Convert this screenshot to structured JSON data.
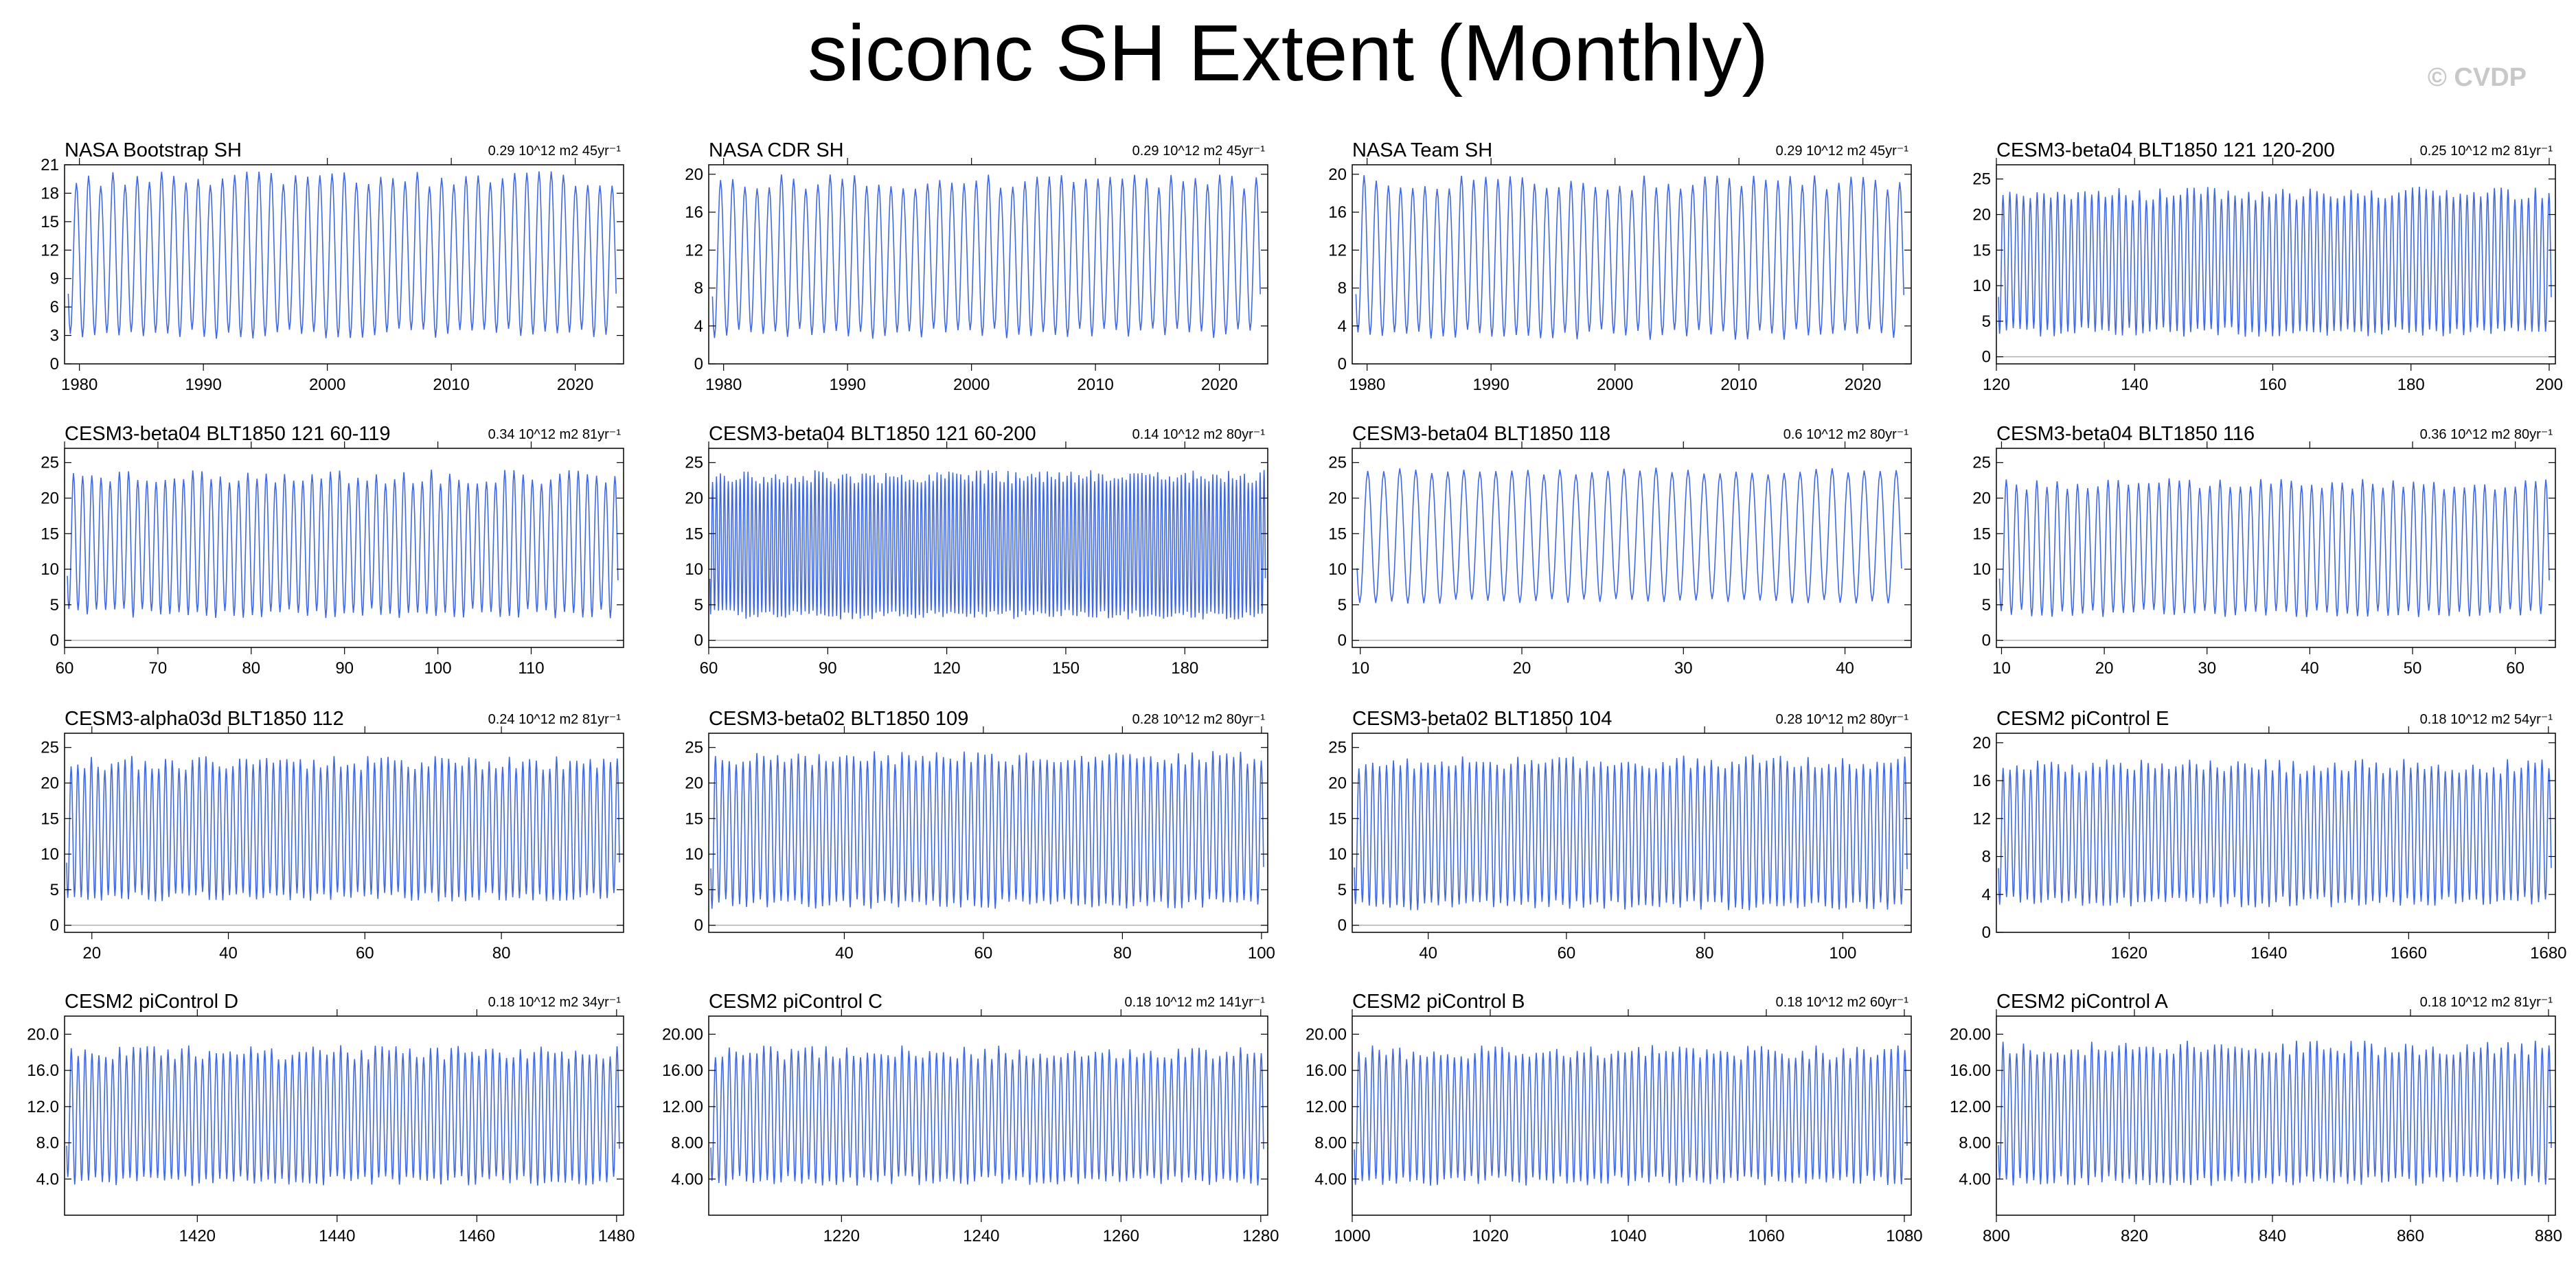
{
  "title": "siconc SH Extent (Monthly)",
  "watermark": "© CVDP",
  "colors": {
    "line": "#4169E1",
    "frame": "#000000",
    "zero_line": "#b0b0b0"
  },
  "chart_data": [
    {
      "type": "line",
      "title": "NASA Bootstrap SH",
      "trend": "0.29 10^12 m2 45yr⁻¹",
      "xlim": [
        1978.8,
        2023.9
      ],
      "ylim": [
        0,
        21
      ],
      "yticks": [
        0,
        3,
        6,
        9,
        12,
        15,
        18,
        21
      ],
      "ytick_labels": [
        "0",
        "3",
        "6",
        "9",
        "12",
        "15",
        "18",
        "21"
      ],
      "xticks": [
        1980,
        1990,
        2000,
        2010,
        2020
      ],
      "cycles": 45,
      "range": [
        3.2,
        19.5
      ],
      "variability": 0.8
    },
    {
      "type": "line",
      "title": "NASA CDR SH",
      "trend": "0.29 10^12 m2 45yr⁻¹",
      "xlim": [
        1978.8,
        2023.9
      ],
      "ylim": [
        0,
        21
      ],
      "yticks": [
        0,
        4,
        8,
        12,
        16,
        20
      ],
      "ytick_labels": [
        "0",
        "4",
        "8",
        "12",
        "16",
        "20"
      ],
      "xticks": [
        1980,
        1990,
        2000,
        2010,
        2020
      ],
      "cycles": 45,
      "range": [
        3.2,
        19.2
      ],
      "variability": 0.8
    },
    {
      "type": "line",
      "title": "NASA Team SH",
      "trend": "0.29 10^12 m2 45yr⁻¹",
      "xlim": [
        1978.8,
        2023.9
      ],
      "ylim": [
        0,
        21
      ],
      "yticks": [
        0,
        4,
        8,
        12,
        16,
        20
      ],
      "ytick_labels": [
        "0",
        "4",
        "8",
        "12",
        "16",
        "20"
      ],
      "xticks": [
        1980,
        1990,
        2000,
        2010,
        2020
      ],
      "cycles": 45,
      "range": [
        3.1,
        19.1
      ],
      "variability": 0.8
    },
    {
      "type": "line",
      "title": "CESM3-beta04 BLT1850 121 120-200",
      "trend": "0.25 10^12 m2 81yr⁻¹",
      "xlim": [
        120,
        200.9
      ],
      "ylim": [
        -1,
        27
      ],
      "yticks": [
        0,
        5,
        10,
        15,
        20,
        25
      ],
      "ytick_labels": [
        "0",
        "5",
        "10",
        "15",
        "20",
        "25"
      ],
      "xticks": [
        120,
        140,
        160,
        180,
        200
      ],
      "cycles": 81,
      "range": [
        3.5,
        23.0
      ],
      "variability": 1.0
    },
    {
      "type": "line",
      "title": "CESM3-beta04 BLT1850 121 60-119",
      "trend": "0.34 10^12 m2 81yr⁻¹",
      "xlim": [
        60,
        119.9
      ],
      "ylim": [
        -1,
        27
      ],
      "yticks": [
        0,
        5,
        10,
        15,
        20,
        25
      ],
      "ytick_labels": [
        "0",
        "5",
        "10",
        "15",
        "20",
        "25"
      ],
      "xticks": [
        60,
        70,
        80,
        90,
        100,
        110
      ],
      "cycles": 60,
      "range": [
        3.8,
        23.0
      ],
      "variability": 1.0
    },
    {
      "type": "line",
      "title": "CESM3-beta04 BLT1850 121 60-200",
      "trend": "0.14 10^12 m2 80yr⁻¹",
      "xlim": [
        60,
        200.9
      ],
      "ylim": [
        -1,
        27
      ],
      "yticks": [
        0,
        5,
        10,
        15,
        20,
        25
      ],
      "ytick_labels": [
        "0",
        "5",
        "10",
        "15",
        "20",
        "25"
      ],
      "xticks": [
        60,
        90,
        120,
        150,
        180
      ],
      "cycles": 141,
      "range": [
        3.6,
        23.0
      ],
      "variability": 1.0
    },
    {
      "type": "line",
      "title": "CESM3-beta04 BLT1850 118",
      "trend": "0.6 10^12 m2 80yr⁻¹",
      "xlim": [
        9.5,
        44.1
      ],
      "ylim": [
        -1,
        27
      ],
      "yticks": [
        0,
        5,
        10,
        15,
        20,
        25
      ],
      "ytick_labels": [
        "0",
        "5",
        "10",
        "15",
        "20",
        "25"
      ],
      "xticks": [
        10,
        20,
        30,
        40
      ],
      "cycles": 34,
      "range": [
        5.5,
        23.8
      ],
      "variability": 0.5
    },
    {
      "type": "line",
      "title": "CESM3-beta04 BLT1850 116",
      "trend": "0.36 10^12 m2 80yr⁻¹",
      "xlim": [
        9.5,
        63.9
      ],
      "ylim": [
        -1,
        27
      ],
      "yticks": [
        0,
        5,
        10,
        15,
        20,
        25
      ],
      "ytick_labels": [
        "0",
        "5",
        "10",
        "15",
        "20",
        "25"
      ],
      "xticks": [
        10,
        20,
        30,
        40,
        50,
        60
      ],
      "cycles": 54,
      "range": [
        3.8,
        22.0
      ],
      "variability": 0.8
    },
    {
      "type": "line",
      "title": "CESM3-alpha03d BLT1850 112",
      "trend": "0.24 10^12 m2 81yr⁻¹",
      "xlim": [
        16,
        97.9
      ],
      "ylim": [
        -1,
        27
      ],
      "yticks": [
        0,
        5,
        10,
        15,
        20,
        25
      ],
      "ytick_labels": [
        "0",
        "5",
        "10",
        "15",
        "20",
        "25"
      ],
      "xticks": [
        20,
        40,
        60,
        80
      ],
      "cycles": 82,
      "range": [
        4.0,
        22.8
      ],
      "variability": 1.0
    },
    {
      "type": "line",
      "title": "CESM3-beta02 BLT1850 109",
      "trend": "0.28 10^12 m2 80yr⁻¹",
      "xlim": [
        20.5,
        100.9
      ],
      "ylim": [
        -1,
        27
      ],
      "yticks": [
        0,
        5,
        10,
        15,
        20,
        25
      ],
      "ytick_labels": [
        "0",
        "5",
        "10",
        "15",
        "20",
        "25"
      ],
      "xticks": [
        40,
        60,
        80,
        100
      ],
      "cycles": 80,
      "range": [
        3.0,
        23.5
      ],
      "variability": 1.0
    },
    {
      "type": "line",
      "title": "CESM3-beta02 BLT1850 104",
      "trend": "0.28 10^12 m2 80yr⁻¹",
      "xlim": [
        29,
        109.9
      ],
      "ylim": [
        -1,
        27
      ],
      "yticks": [
        0,
        5,
        10,
        15,
        20,
        25
      ],
      "ytick_labels": [
        "0",
        "5",
        "10",
        "15",
        "20",
        "25"
      ],
      "xticks": [
        40,
        60,
        80,
        100
      ],
      "cycles": 80,
      "range": [
        2.8,
        23.0
      ],
      "variability": 1.0
    },
    {
      "type": "line",
      "title": "CESM2 piControl E",
      "trend": "0.18 10^12 m2 54yr⁻¹",
      "xlim": [
        1601,
        1681
      ],
      "ylim": [
        0,
        21
      ],
      "yticks": [
        0,
        4,
        8,
        12,
        16,
        20
      ],
      "ytick_labels": [
        "0",
        "4",
        "8",
        "12",
        "16",
        "20"
      ],
      "xticks": [
        1620,
        1640,
        1660,
        1680
      ],
      "cycles": 80,
      "range": [
        3.2,
        17.5
      ],
      "variability": 0.8
    },
    {
      "type": "line",
      "title": "CESM2 piControl D",
      "trend": "0.18 10^12 m2 34yr⁻¹",
      "xlim": [
        1401,
        1481
      ],
      "ylim": [
        0,
        22
      ],
      "yticks": [
        4,
        8,
        12,
        16,
        20
      ],
      "ytick_labels": [
        "4.0",
        "8.0",
        "12.0",
        "16.0",
        "20.0"
      ],
      "xticks": [
        1420,
        1440,
        1460,
        1480
      ],
      "cycles": 80,
      "range": [
        3.8,
        18.0
      ],
      "variability": 0.8
    },
    {
      "type": "line",
      "title": "CESM2 piControl C",
      "trend": "0.18 10^12 m2 141yr⁻¹",
      "xlim": [
        1201,
        1281
      ],
      "ylim": [
        0,
        22
      ],
      "yticks": [
        4,
        8,
        12,
        16,
        20
      ],
      "ytick_labels": [
        "4.00",
        "8.00",
        "12.00",
        "16.00",
        "20.00"
      ],
      "xticks": [
        1220,
        1240,
        1260,
        1280
      ],
      "cycles": 80,
      "range": [
        3.8,
        18.0
      ],
      "variability": 0.8
    },
    {
      "type": "line",
      "title": "CESM2 piControl B",
      "trend": "0.18 10^12 m2 60yr⁻¹",
      "xlim": [
        1000,
        1081
      ],
      "ylim": [
        0,
        22
      ],
      "yticks": [
        4,
        8,
        12,
        16,
        20
      ],
      "ytick_labels": [
        "4.00",
        "8.00",
        "12.00",
        "16.00",
        "20.00"
      ],
      "xticks": [
        1000,
        1020,
        1040,
        1060,
        1080
      ],
      "cycles": 81,
      "range": [
        3.8,
        18.0
      ],
      "variability": 0.8
    },
    {
      "type": "line",
      "title": "CESM2 piControl A",
      "trend": "0.18 10^12 m2 81yr⁻¹",
      "xlim": [
        800,
        881
      ],
      "ylim": [
        0,
        22
      ],
      "yticks": [
        4,
        8,
        12,
        16,
        20
      ],
      "ytick_labels": [
        "4.00",
        "8.00",
        "12.00",
        "16.00",
        "20.00"
      ],
      "xticks": [
        800,
        820,
        840,
        860,
        880
      ],
      "cycles": 81,
      "range": [
        3.8,
        18.5
      ],
      "variability": 0.8
    }
  ]
}
